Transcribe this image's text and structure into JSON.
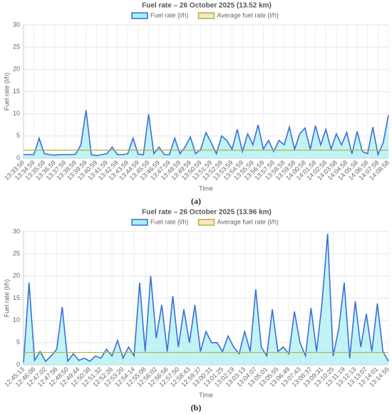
{
  "chart_data": [
    {
      "type": "line",
      "title": "Fuel rate – 26 October 2025 (13.52 km)",
      "caption": "(a)",
      "x_label": "Time",
      "y_label": "Fuel rate (l/h)",
      "categories": [
        "13:33:58",
        null,
        "13:34:59",
        null,
        "13:35:59",
        null,
        "13:36:59",
        null,
        "13:37:59",
        null,
        "13:38:59",
        null,
        "13:39:59",
        null,
        "13:40:59",
        null,
        "13:41:59",
        null,
        "13:42:59",
        null,
        "13:43:59",
        null,
        "13:44:59",
        null,
        "13:45:59",
        null,
        "13:46:59",
        null,
        "13:47:59",
        null,
        "13:48:59",
        null,
        "13:49:59",
        null,
        "13:50:59",
        null,
        "13:51:59",
        null,
        "13:52:59",
        null,
        "13:53:59",
        null,
        "13:54:59",
        null,
        "13:55:59",
        null,
        "13:56:59",
        null,
        "13:57:58",
        null,
        "13:58:58",
        null,
        "13:59:58",
        null,
        "14:00:58",
        null,
        "14:01:58",
        null,
        "14:02:58",
        null,
        "14:03:58",
        null,
        "14:04:58",
        null,
        "14:05:58",
        null,
        "14:06:58",
        null,
        "14:07:58",
        null,
        "14:08:58"
      ],
      "series": [
        {
          "name": "Fuel rate (l/h)",
          "color": "#3a6fd8",
          "fill": "#a8eef2",
          "values": [
            0.8,
            0.8,
            0.8,
            4.5,
            1,
            0.8,
            0.7,
            0.8,
            0.8,
            0.8,
            0.9,
            3,
            10.8,
            0.8,
            0.6,
            0.8,
            1,
            2.5,
            0.8,
            0.8,
            1,
            4.5,
            0.9,
            0.8,
            9.9,
            1,
            2.5,
            0.8,
            0.8,
            4.5,
            1,
            2.5,
            4.8,
            1,
            2,
            5.8,
            3.5,
            1,
            5,
            4,
            2,
            6.5,
            1.5,
            5.5,
            3,
            7.5,
            2,
            4,
            1.5,
            4,
            3,
            7,
            2,
            5.5,
            6.8,
            2,
            7.3,
            3,
            6.5,
            2,
            5.5,
            3,
            5.8,
            1,
            6,
            1.5,
            1,
            7,
            0.8,
            3.5,
            9.7
          ]
        },
        {
          "name": "Average fuel rate (l/h)",
          "color": "#a8b83a",
          "fill": "#fbe3c8",
          "values": [
            1.8,
            1.8,
            1.8,
            1.8,
            1.8,
            1.8,
            1.8,
            1.8,
            1.8,
            1.8,
            1.8,
            1.8,
            1.8,
            1.8,
            1.8,
            1.8,
            1.8,
            1.8,
            1.8,
            1.8,
            1.8,
            1.8,
            1.8,
            1.8,
            1.8,
            1.8,
            1.8,
            1.8,
            1.8,
            1.8,
            1.8,
            1.8,
            1.8,
            1.8,
            1.8,
            1.8,
            1.8,
            1.8,
            1.8,
            1.8,
            1.8,
            1.8,
            1.8,
            1.8,
            1.8,
            1.8,
            1.8,
            1.8,
            1.8,
            1.8,
            1.8,
            1.8,
            1.8,
            1.8,
            1.8,
            1.8,
            1.8,
            1.8,
            1.8,
            1.8,
            1.8,
            1.8,
            1.8,
            1.8,
            1.8,
            1.8,
            1.8,
            1.8,
            1.8,
            1.8,
            1.8
          ]
        }
      ],
      "ylim": [
        0,
        30
      ],
      "yticks": [
        0,
        5,
        10,
        15,
        20,
        25,
        30
      ],
      "grid": true,
      "legend": "top"
    },
    {
      "type": "line",
      "title": "Fuel rate – 26 October 2025 (13.96 km)",
      "caption": "(b)",
      "x_label": "Time",
      "y_label": "Fuel rate (l/h)",
      "categories": [
        "12:45:13",
        null,
        "12:46:08",
        null,
        "12:47:02",
        null,
        "12:47:56",
        null,
        "12:48:50",
        null,
        "12:49:44",
        null,
        "12:50:38",
        null,
        "12:51:32",
        null,
        "12:52:26",
        null,
        "12:53:20",
        null,
        "12:54:14",
        null,
        "12:55:08",
        null,
        "12:56:02",
        null,
        "12:56:56",
        null,
        "12:57:50",
        null,
        "12:58:43",
        null,
        "12:59:37",
        null,
        "13:00:31",
        null,
        "13:01:25",
        null,
        "13:02:19",
        null,
        "13:03:13",
        null,
        "13:04:07",
        null,
        "13:05:01",
        null,
        "13:05:55",
        null,
        "13:06:49",
        null,
        "13:07:43",
        null,
        "13:08:37",
        null,
        "13:09:31",
        null,
        "13:10:25",
        null,
        "13:11:19",
        null,
        "13:12:13",
        null,
        "13:13:07",
        null,
        "13:14:01",
        null,
        "13:14:55"
      ],
      "series": [
        {
          "name": "Fuel rate (l/h)",
          "color": "#3a6fd8",
          "fill": "#a8eef2",
          "values": [
            0.5,
            18.5,
            1,
            3,
            0.8,
            2,
            3.5,
            13,
            0.8,
            2.5,
            1,
            1.5,
            0.8,
            2,
            1.5,
            3.5,
            2,
            5.5,
            1.5,
            4,
            2,
            18.5,
            3,
            20,
            6,
            13.5,
            3,
            15.5,
            4,
            12.5,
            5,
            13.5,
            3,
            7.5,
            5,
            5,
            3,
            6.5,
            4,
            2.5,
            7.5,
            3,
            17,
            4,
            2,
            12.5,
            3,
            4,
            2.5,
            12,
            5,
            2,
            12.8,
            3,
            14,
            29.5,
            2,
            8,
            18.5,
            1.5,
            14.3,
            4,
            11.5,
            3,
            13.8,
            3,
            0.8
          ]
        },
        {
          "name": "Average fuel rate (l/h)",
          "color": "#a8b83a",
          "fill": "#fbe3c8",
          "values": [
            2.8,
            2.8,
            2.8,
            2.8,
            2.8,
            2.8,
            2.8,
            2.8,
            2.8,
            2.8,
            2.8,
            2.8,
            2.8,
            2.8,
            2.8,
            2.8,
            2.8,
            2.8,
            2.8,
            2.8,
            2.8,
            2.8,
            2.8,
            2.8,
            2.8,
            2.8,
            2.8,
            2.8,
            2.8,
            2.8,
            2.8,
            2.8,
            2.8,
            2.8,
            2.8,
            2.8,
            2.8,
            2.8,
            2.8,
            2.8,
            2.8,
            2.8,
            2.8,
            2.8,
            2.8,
            2.8,
            2.8,
            2.8,
            2.8,
            2.8,
            2.8,
            2.8,
            2.8,
            2.8,
            2.8,
            2.8,
            2.8,
            2.8,
            2.8,
            2.8,
            2.8,
            2.8,
            2.8,
            2.8,
            2.8,
            2.8,
            2.8
          ]
        }
      ],
      "ylim": [
        0,
        30
      ],
      "yticks": [
        0,
        5,
        10,
        15,
        20,
        25,
        30
      ],
      "grid": true,
      "legend": "top"
    }
  ]
}
